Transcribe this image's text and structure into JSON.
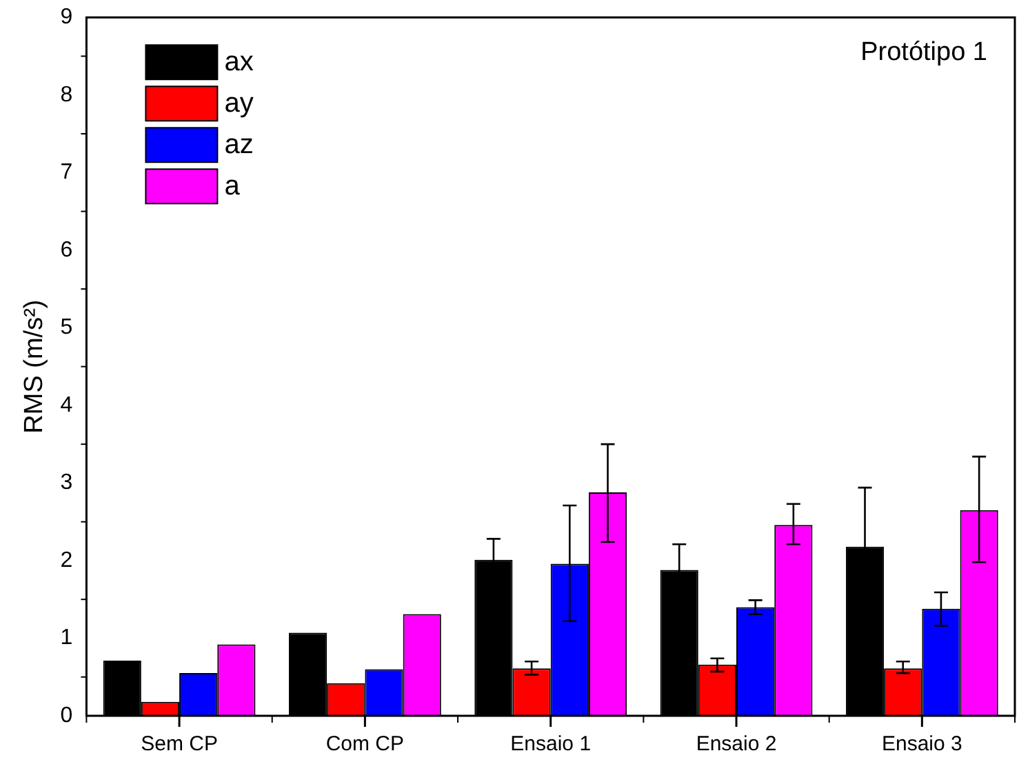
{
  "chart_data": {
    "type": "bar",
    "ylabel": "RMS (m/s²)",
    "annotations": [
      "Protótipo 1"
    ],
    "categories": [
      "Sem CP",
      "Com CP",
      "Ensaio 1",
      "Ensaio 2",
      "Ensaio 3"
    ],
    "series": [
      {
        "name": "ax",
        "color": "#000000",
        "values": [
          0.71,
          1.07,
          2.01,
          1.88,
          2.18
        ],
        "errors": [
          null,
          null,
          0.27,
          0.33,
          0.76
        ]
      },
      {
        "name": "ay",
        "color": "#ff0000",
        "values": [
          0.18,
          0.42,
          0.61,
          0.66,
          0.61
        ],
        "errors": [
          null,
          null,
          [
            0.53,
            0.7
          ],
          [
            0.57,
            0.74
          ],
          [
            0.55,
            0.7
          ]
        ]
      },
      {
        "name": "az",
        "color": "#0000ff",
        "values": [
          0.55,
          0.6,
          1.96,
          1.4,
          1.38
        ],
        "errors": [
          null,
          null,
          [
            1.22,
            2.71
          ],
          [
            1.31,
            1.49
          ],
          [
            1.16,
            1.59
          ]
        ]
      },
      {
        "name": "a",
        "color": "#ff00ff",
        "values": [
          0.92,
          1.31,
          2.88,
          2.46,
          2.65
        ],
        "errors": [
          null,
          null,
          [
            2.24,
            3.5
          ],
          [
            2.21,
            2.73
          ],
          [
            1.98,
            3.34
          ]
        ]
      }
    ],
    "ylim": [
      0,
      9
    ],
    "yticks": [
      0,
      1,
      2,
      3,
      4,
      5,
      6,
      7,
      8,
      9
    ],
    "grid": false,
    "legend": "top left"
  }
}
